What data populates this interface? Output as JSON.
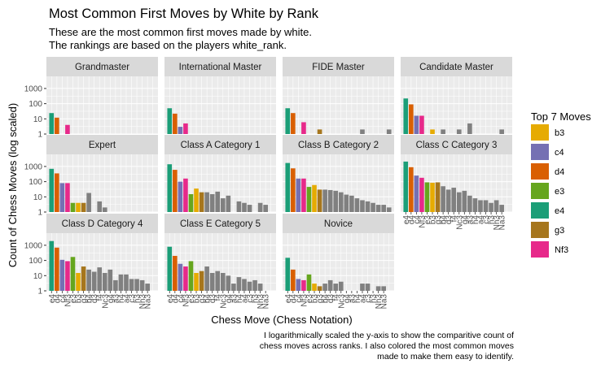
{
  "chart_data": {
    "type": "bar",
    "title": "Most Common First Moves by White by Rank",
    "subtitle_lines": [
      "These are the most common first moves made by white.",
      "The rankings are based on the players white_rank."
    ],
    "xlabel": "Chess Move (Chess Notation)",
    "ylabel": "Count of Chess Moves (log scaled)",
    "y_scale": "log10",
    "ylim": [
      1,
      3000
    ],
    "y_ticks": [
      1,
      10,
      100,
      1000
    ],
    "y_tick_labels": [
      "1",
      "10",
      "100",
      "1000"
    ],
    "grid": true,
    "legend_position": "right",
    "caption_lines": [
      "I logarithmically scaled the y-axis to show the comparitive count of",
      "chess moves across ranks. I also colored the most common moves",
      "made to make them easy to identify."
    ],
    "legend": {
      "title": "Top 7 Moves",
      "items": [
        {
          "move": "b3",
          "color": "#E6AB02"
        },
        {
          "move": "c4",
          "color": "#7570B3"
        },
        {
          "move": "d4",
          "color": "#D95F02"
        },
        {
          "move": "e3",
          "color": "#66A61E"
        },
        {
          "move": "e4",
          "color": "#1B9E77"
        },
        {
          "move": "g3",
          "color": "#A6761D"
        },
        {
          "move": "Nf3",
          "color": "#E7298A"
        }
      ]
    },
    "other_color": "#808080",
    "categories": [
      "e4",
      "d4",
      "c4",
      "Nf3",
      "e3",
      "b3",
      "g3",
      "b4",
      "d3",
      "f4",
      "g4",
      "Nc3",
      "a3",
      "a4",
      "c3",
      "h3",
      "h4",
      "Na3",
      "Nh3",
      "f3"
    ],
    "x_tick_labels": [
      "e4",
      "d4",
      "c4",
      "Nf3",
      "e3",
      "b3",
      "g3",
      "b4",
      "d3",
      "f4",
      "Nc3",
      "g4",
      "a3",
      "h4",
      "a4",
      "c3",
      "h3",
      "Nh3",
      "Na3"
    ],
    "panels": [
      {
        "label": "Grandmaster",
        "values": [
          24,
          12,
          0,
          4
        ]
      },
      {
        "label": "International Master",
        "values": [
          50,
          22,
          3,
          5
        ]
      },
      {
        "label": "FIDE Master",
        "values": [
          50,
          24,
          0,
          6,
          0,
          0,
          2,
          0,
          0,
          0,
          0,
          0,
          0,
          0,
          2,
          0,
          0,
          0,
          0,
          2
        ]
      },
      {
        "label": "Candidate Master",
        "values": [
          220,
          90,
          16,
          16,
          0,
          2,
          0,
          2,
          0,
          0,
          2,
          0,
          5,
          0,
          0,
          0,
          0,
          0,
          2
        ]
      },
      {
        "label": "Expert",
        "values": [
          700,
          350,
          80,
          80,
          4,
          4,
          4,
          18,
          0,
          5,
          2
        ]
      },
      {
        "label": "Class A Category 1",
        "values": [
          1400,
          600,
          100,
          160,
          15,
          35,
          20,
          20,
          15,
          22,
          8,
          12,
          0,
          5,
          4,
          3,
          0,
          4,
          3
        ]
      },
      {
        "label": "Class B Category 2",
        "values": [
          1700,
          750,
          160,
          160,
          45,
          60,
          30,
          30,
          28,
          25,
          20,
          14,
          12,
          8,
          6,
          5,
          4,
          3,
          3,
          2
        ]
      },
      {
        "label": "Class C Category 3",
        "values": [
          2100,
          900,
          250,
          180,
          90,
          85,
          90,
          50,
          30,
          40,
          20,
          25,
          12,
          8,
          6,
          6,
          4,
          6,
          3
        ]
      },
      {
        "label": "Class D Category 4",
        "values": [
          1900,
          700,
          110,
          90,
          170,
          15,
          40,
          25,
          18,
          35,
          15,
          25,
          5,
          12,
          12,
          6,
          6,
          5,
          3
        ]
      },
      {
        "label": "Class E Category 5",
        "values": [
          800,
          200,
          60,
          40,
          90,
          15,
          20,
          40,
          15,
          20,
          15,
          10,
          3,
          8,
          6,
          4,
          5,
          3
        ]
      },
      {
        "label": "Novice",
        "values": [
          150,
          25,
          6,
          5,
          12,
          3,
          2,
          3,
          5,
          3,
          4,
          0,
          0,
          0,
          3,
          3,
          0,
          2,
          2
        ]
      }
    ]
  }
}
